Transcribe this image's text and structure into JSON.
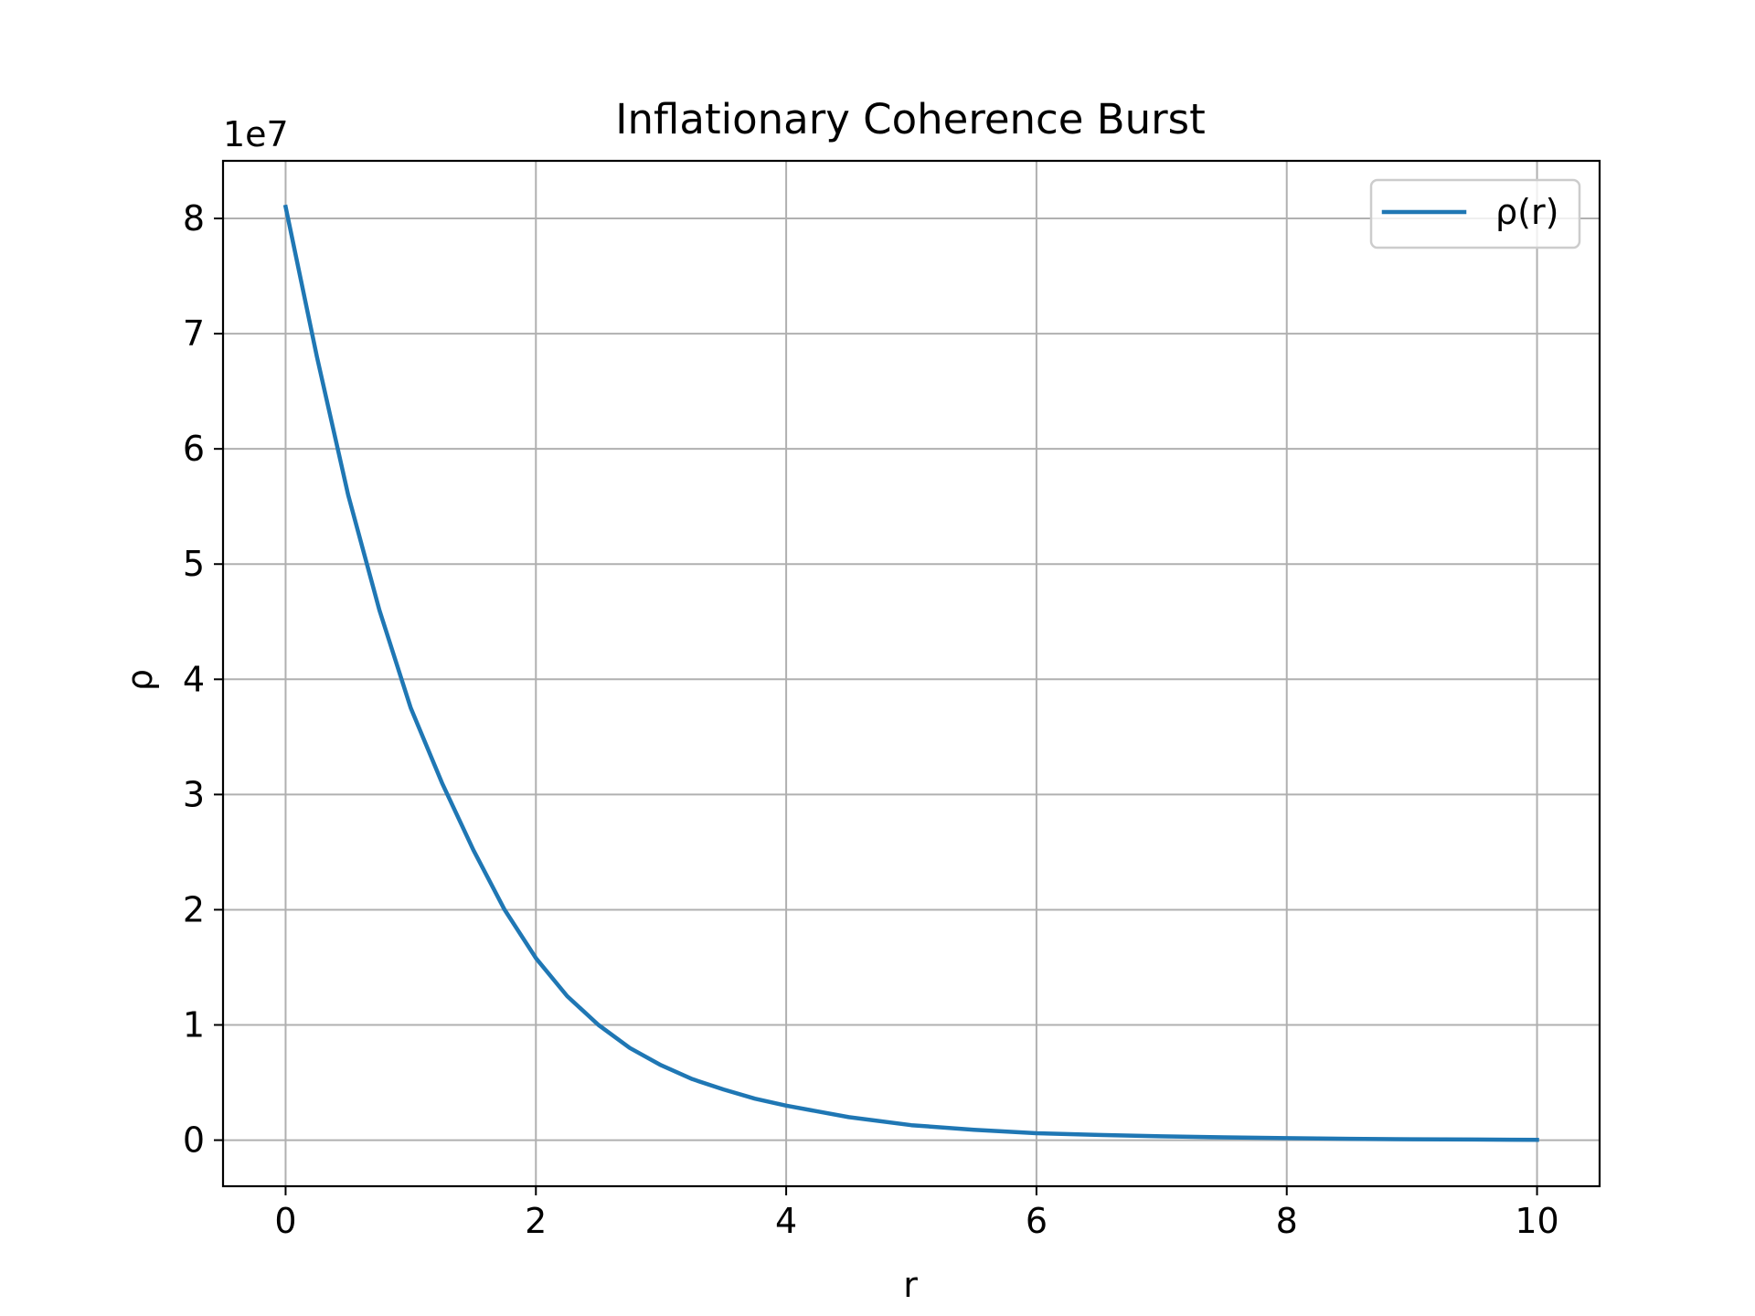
{
  "chart_data": {
    "type": "line",
    "title": "Inflationary Coherence Burst",
    "xlabel": "r",
    "ylabel": "ρ",
    "offset_label": "1e7",
    "xlim": [
      -0.5,
      10.5
    ],
    "ylim": [
      -0.4,
      8.5
    ],
    "y_scale_factor": 10000000,
    "x_ticks": [
      0,
      2,
      4,
      6,
      8,
      10
    ],
    "x_tick_labels": [
      "0",
      "2",
      "4",
      "6",
      "8",
      "10"
    ],
    "y_ticks": [
      0,
      1,
      2,
      3,
      4,
      5,
      6,
      7,
      8
    ],
    "y_tick_labels": [
      "0",
      "1",
      "2",
      "3",
      "4",
      "5",
      "6",
      "7",
      "8"
    ],
    "grid": true,
    "legend_position": "top-right",
    "series": [
      {
        "name": "ρ(r)",
        "color": "#1f77b4",
        "x": [
          0,
          0.25,
          0.5,
          0.75,
          1.0,
          1.25,
          1.5,
          1.75,
          2.0,
          2.25,
          2.5,
          2.75,
          3.0,
          3.25,
          3.5,
          3.75,
          4.0,
          4.5,
          5.0,
          5.5,
          6.0,
          6.5,
          7.0,
          7.5,
          8.0,
          8.5,
          9.0,
          9.5,
          10.0
        ],
        "y": [
          8.1,
          6.8,
          5.6,
          4.6,
          3.75,
          3.1,
          2.52,
          2.0,
          1.58,
          1.25,
          1.0,
          0.8,
          0.65,
          0.53,
          0.44,
          0.36,
          0.3,
          0.2,
          0.13,
          0.09,
          0.06,
          0.045,
          0.033,
          0.024,
          0.017,
          0.012,
          0.008,
          0.005,
          0.003
        ]
      }
    ]
  }
}
